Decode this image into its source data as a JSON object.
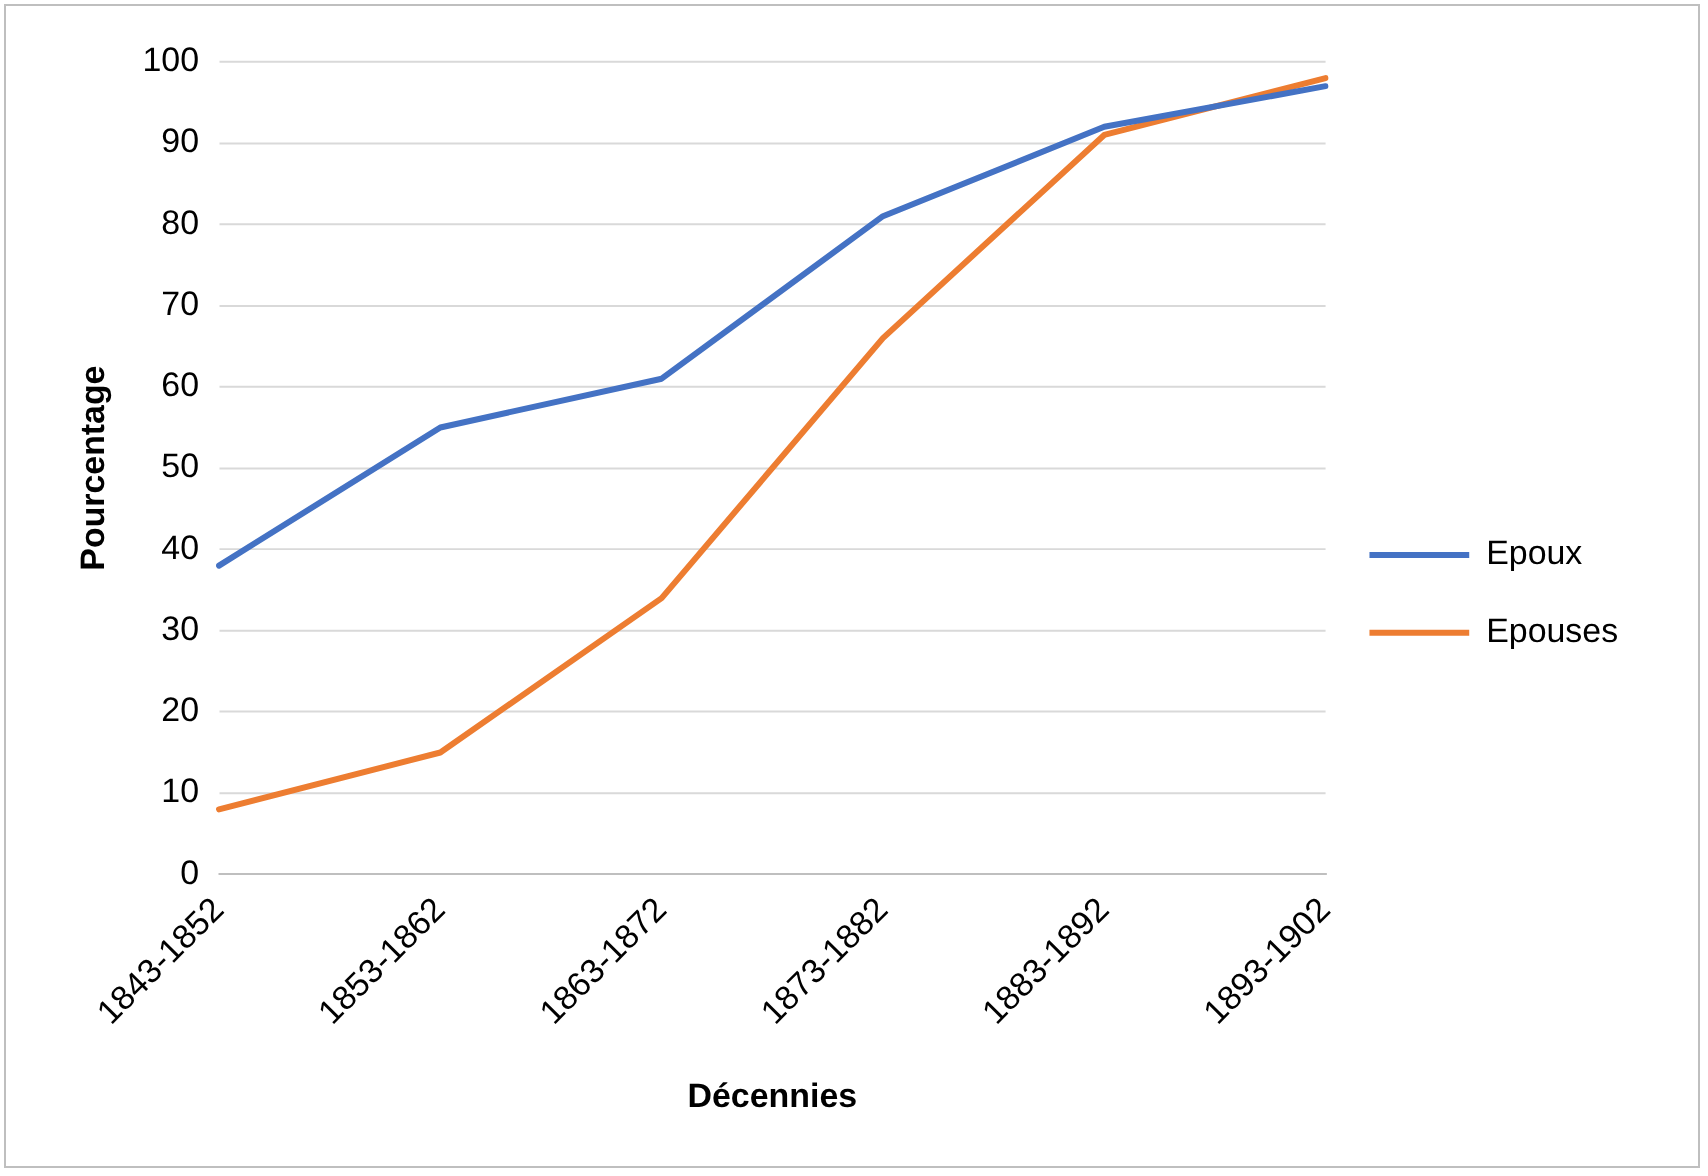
{
  "chart_data": {
    "type": "line",
    "xlabel": "Décennies",
    "ylabel": "Pourcentage",
    "categories": [
      "1843-1852",
      "1853-1862",
      "1863-1872",
      "1873-1882",
      "1883-1892",
      "1893-1902"
    ],
    "series": [
      {
        "name": "Epoux",
        "color": "#4472c4",
        "values": [
          38,
          55,
          61,
          81,
          92,
          97
        ]
      },
      {
        "name": "Epouses",
        "color": "#ed7d31",
        "values": [
          8,
          15,
          34,
          66,
          91,
          98
        ]
      }
    ],
    "ylim": [
      0,
      100
    ],
    "yticks": [
      0,
      10,
      20,
      30,
      40,
      50,
      60,
      70,
      80,
      90,
      100
    ],
    "grid": "y",
    "legend": "right",
    "marker": "none",
    "line_style": "solid"
  }
}
